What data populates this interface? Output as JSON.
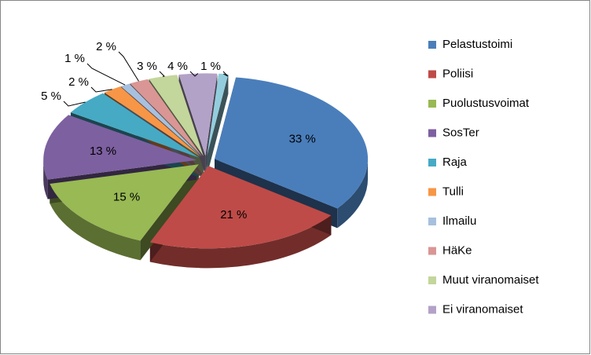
{
  "chart_data": {
    "type": "pie3d",
    "categories": [
      "Pelastustoimi",
      "Poliisi",
      "Puolustusvoimat",
      "SosTer",
      "Raja",
      "Tulli",
      "Ilmailu",
      "HäKe",
      "Muut viranomaiset",
      "Ei viranomaiset",
      null
    ],
    "values": [
      33,
      21,
      15,
      13,
      5,
      2,
      1,
      2,
      3,
      4,
      1
    ],
    "value_labels": [
      "33 %",
      "21 %",
      "15 %",
      "13 %",
      "5 %",
      "2 %",
      "1 %",
      "2 %",
      "3 %",
      "4 %",
      "1 %"
    ],
    "colors": [
      "#4a7ebb",
      "#be4b48",
      "#98b954",
      "#7d60a0",
      "#46aac5",
      "#f79646",
      "#a7c0de",
      "#d99694",
      "#c3d69b",
      "#b3a2c7",
      "#93cddd"
    ],
    "legend": "right"
  }
}
